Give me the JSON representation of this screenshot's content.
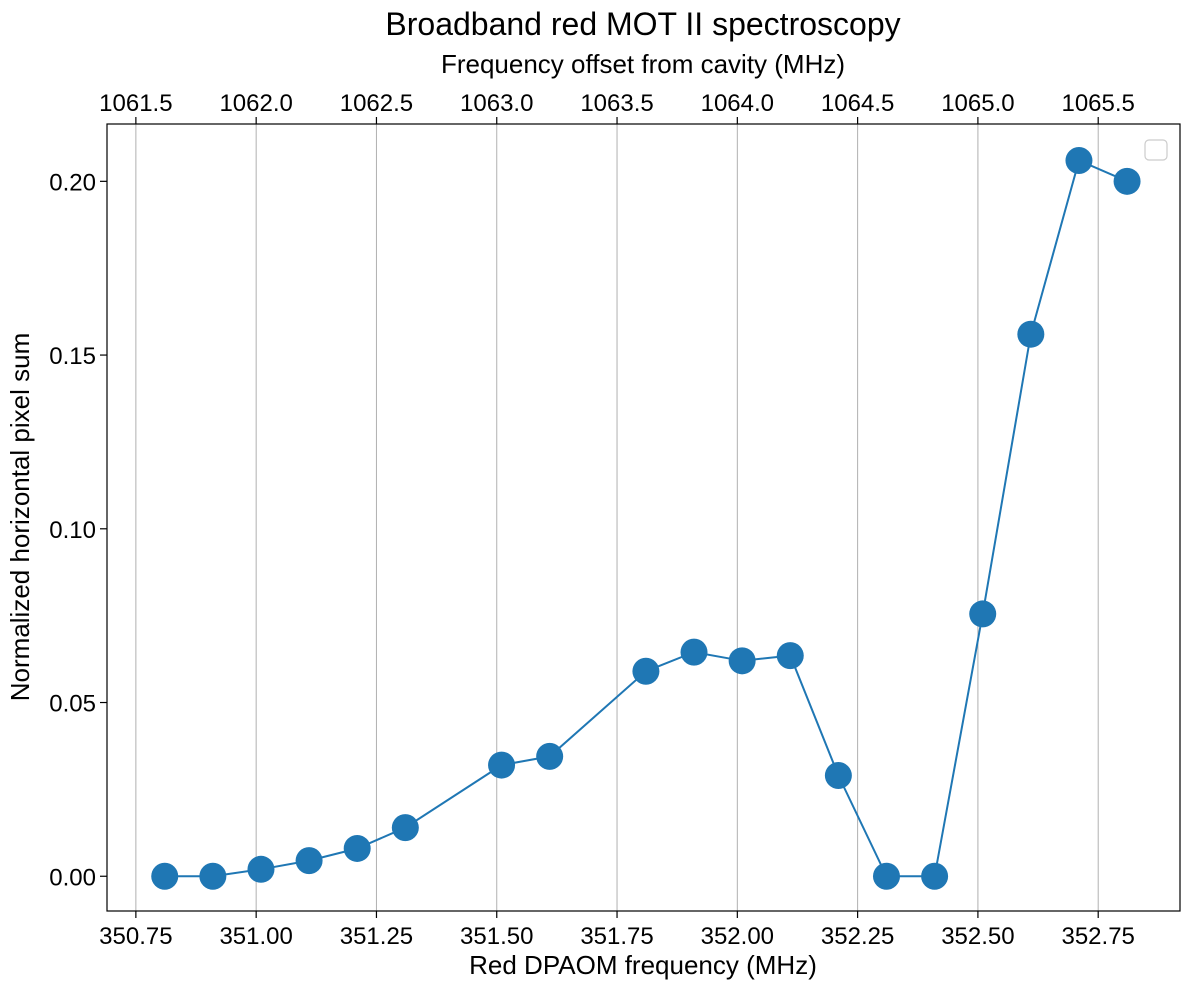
{
  "chart_data": {
    "type": "line",
    "title": "Broadband red MOT II spectroscopy",
    "xlabel": "Red DPAOM frequency (MHz)",
    "ylabel": "Normalized horizontal pixel sum",
    "x2label": "Frequency offset from cavity (MHz)",
    "xlim": [
      350.69,
      352.92
    ],
    "ylim": [
      -0.01,
      0.2165
    ],
    "x_ticks": [
      350.75,
      351.0,
      351.25,
      351.5,
      351.75,
      352.0,
      352.25,
      352.5,
      352.75
    ],
    "x_tick_labels": [
      "350.75",
      "351.00",
      "351.25",
      "351.50",
      "351.75",
      "352.00",
      "352.25",
      "352.50",
      "352.75"
    ],
    "y_ticks": [
      0.0,
      0.05,
      0.1,
      0.15,
      0.2
    ],
    "y_tick_labels": [
      "0.00",
      "0.05",
      "0.10",
      "0.15",
      "0.20"
    ],
    "x2_ticks": [
      1061.5,
      1062.0,
      1062.5,
      1063.0,
      1063.5,
      1064.0,
      1064.5,
      1065.0,
      1065.5
    ],
    "x2_tick_labels": [
      "1061.5",
      "1062.0",
      "1062.5",
      "1063.0",
      "1063.5",
      "1064.0",
      "1064.5",
      "1065.0",
      "1065.5"
    ],
    "x2_ticks_at_primary": [
      350.75,
      351.0,
      351.25,
      351.5,
      351.75,
      352.0,
      352.25,
      352.5,
      352.75
    ],
    "grid": "vertical",
    "legend": "top-right (empty)",
    "series": [
      {
        "color": "#1f77b4",
        "x": [
          350.81,
          350.91,
          351.01,
          351.11,
          351.21,
          351.31,
          351.51,
          351.61,
          351.81,
          351.91,
          352.01,
          352.11,
          352.21,
          352.31,
          352.41,
          352.51,
          352.61,
          352.71,
          352.81
        ],
        "y": [
          0.0,
          0.0,
          0.002,
          0.0045,
          0.008,
          0.014,
          0.032,
          0.0345,
          0.059,
          0.0645,
          0.062,
          0.0635,
          0.029,
          0.0,
          0.0,
          0.0755,
          0.156,
          0.206,
          0.2
        ]
      }
    ]
  }
}
